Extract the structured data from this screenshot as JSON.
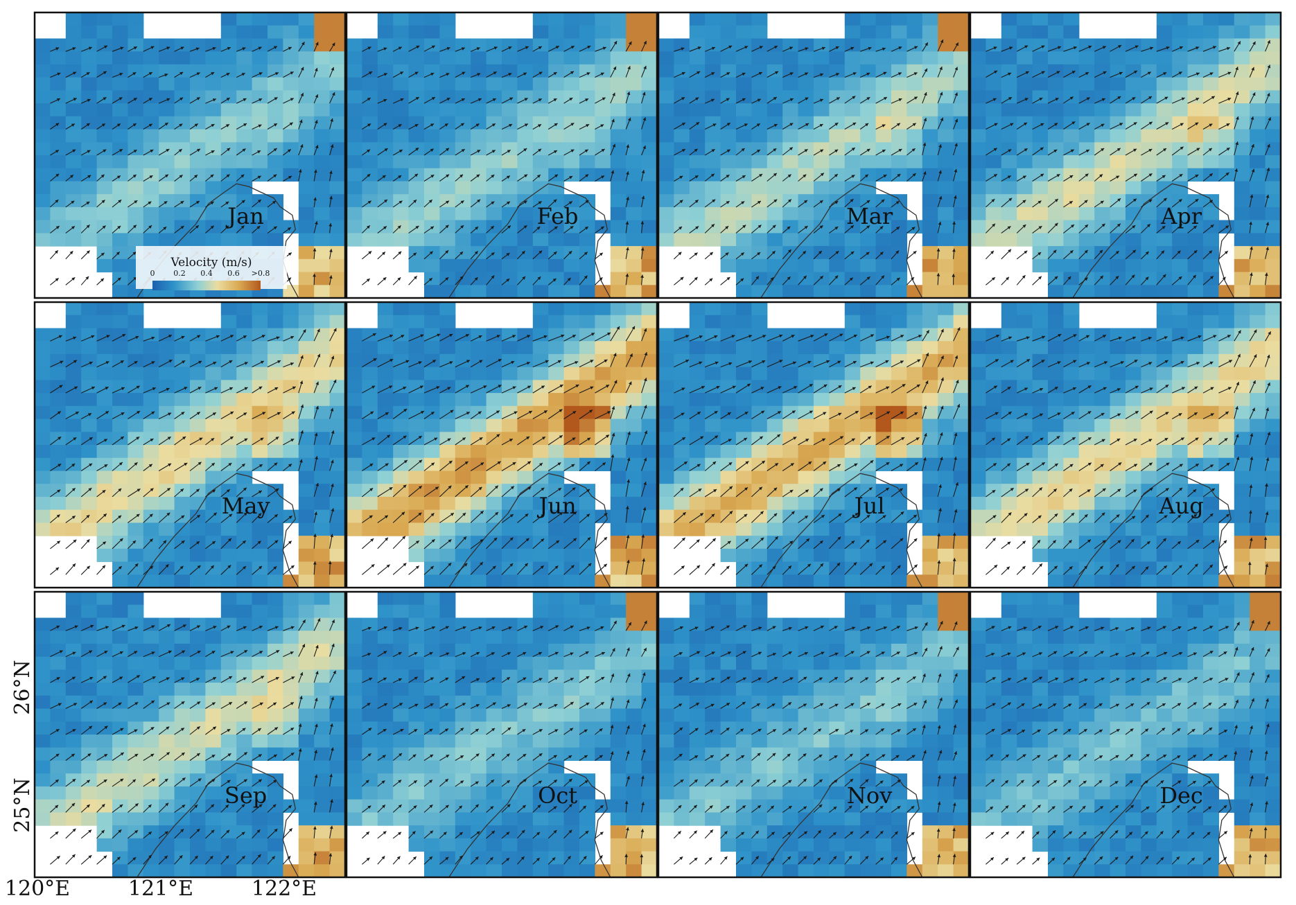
{
  "figure": {
    "panels": [
      {
        "month": "Jan",
        "strength": 0.32
      },
      {
        "month": "Feb",
        "strength": 0.34
      },
      {
        "month": "Mar",
        "strength": 0.38
      },
      {
        "month": "Apr",
        "strength": 0.44
      },
      {
        "month": "May",
        "strength": 0.5
      },
      {
        "month": "Jun",
        "strength": 0.66
      },
      {
        "month": "Jul",
        "strength": 0.62
      },
      {
        "month": "Aug",
        "strength": 0.5
      },
      {
        "month": "Sep",
        "strength": 0.44
      },
      {
        "month": "Oct",
        "strength": 0.3
      },
      {
        "month": "Nov",
        "strength": 0.3
      },
      {
        "month": "Dec",
        "strength": 0.28
      }
    ],
    "colorbar": {
      "title": "Velocity (m/s)",
      "ticks": [
        "0",
        "0.2",
        "0.4",
        "0.6",
        ">0.8"
      ],
      "colors": [
        "#1a5fae",
        "#2f93c9",
        "#8fd0d4",
        "#eadca0",
        "#d9a952",
        "#b2581d"
      ]
    },
    "lat_labels": [
      "26°N",
      "25°N"
    ],
    "lon_labels": [
      "120°E",
      "121°E",
      "122°E"
    ],
    "land_color": "#ffffff",
    "coast_color": "#333333"
  }
}
